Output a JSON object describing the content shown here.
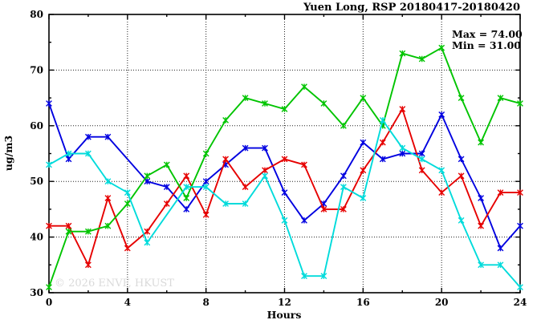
{
  "title": "Yuen Long, RSP 20180417-20180420",
  "stats": {
    "max_label": "Max = 74.00",
    "min_label": "Min = 31.00"
  },
  "watermark": "© 2026 ENVF, HKUST",
  "chart_data": {
    "type": "line",
    "title": "Yuen Long, RSP 20180417-20180420",
    "xlabel": "Hours",
    "ylabel": "ug/m3",
    "xlim": [
      0,
      24
    ],
    "ylim": [
      30,
      80
    ],
    "xticks": [
      0,
      4,
      8,
      12,
      16,
      20,
      24
    ],
    "yticks": [
      30,
      40,
      50,
      60,
      70,
      80
    ],
    "grid": true,
    "legend": "none",
    "max": 74.0,
    "min": 31.0,
    "x": [
      0,
      1,
      2,
      3,
      4,
      5,
      6,
      7,
      8,
      9,
      10,
      11,
      12,
      13,
      14,
      15,
      16,
      17,
      18,
      19,
      20,
      21,
      22,
      23,
      24
    ],
    "series": [
      {
        "name": "blue",
        "color": "#0000e0",
        "values": [
          64,
          54,
          58,
          58,
          null,
          50,
          49,
          45,
          50,
          53,
          56,
          56,
          48,
          43,
          46,
          51,
          57,
          54,
          55,
          55,
          62,
          54,
          47,
          38,
          42
        ]
      },
      {
        "name": "red",
        "color": "#e60000",
        "values": [
          42,
          42,
          35,
          47,
          38,
          41,
          46,
          51,
          44,
          54,
          49,
          52,
          54,
          53,
          45,
          45,
          52,
          57,
          63,
          52,
          48,
          51,
          42,
          48,
          48
        ]
      },
      {
        "name": "green",
        "color": "#00c400",
        "values": [
          31,
          41,
          41,
          42,
          46,
          51,
          53,
          47,
          55,
          61,
          65,
          64,
          63,
          67,
          64,
          60,
          65,
          60,
          73,
          72,
          74,
          65,
          57,
          65,
          64
        ]
      },
      {
        "name": "cyan",
        "color": "#00dbdb",
        "values": [
          53,
          55,
          55,
          50,
          48,
          39,
          null,
          49,
          49,
          46,
          46,
          51,
          43,
          33,
          33,
          49,
          47,
          61,
          56,
          54,
          52,
          43,
          35,
          35,
          31
        ]
      }
    ]
  }
}
